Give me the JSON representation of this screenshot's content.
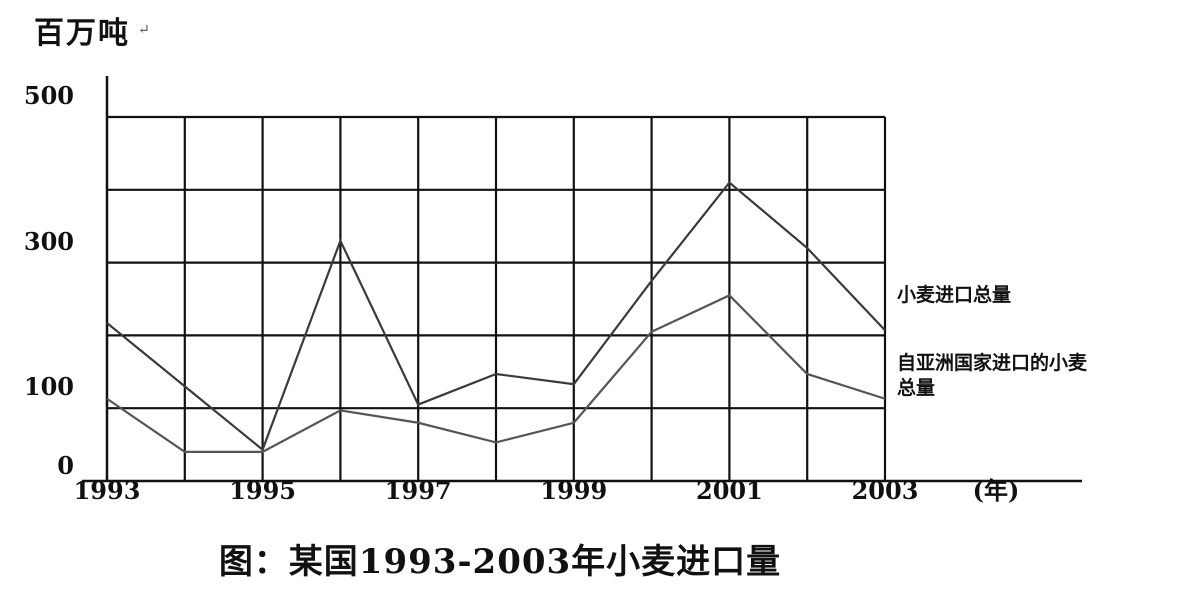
{
  "unit_label": "百万吨",
  "unit_mark": "↵",
  "caption": "图：某国1993-2003年小麦进口量",
  "chart_data": {
    "type": "line",
    "title": "图：某国1993-2003年小麦进口量",
    "ylabel": "百万吨",
    "xlabel": "(年)",
    "x": [
      1993,
      1994,
      1995,
      1996,
      1997,
      1998,
      1999,
      2000,
      2001,
      2002,
      2003
    ],
    "x_tick_labels": [
      "1993",
      "1995",
      "1997",
      "1999",
      "2001",
      "2003"
    ],
    "x_tick_values": [
      1993,
      1995,
      1997,
      1999,
      2001,
      2003
    ],
    "y_tick_labels": [
      "500",
      "300",
      "100",
      "0"
    ],
    "y_tick_values": [
      500,
      300,
      100,
      0
    ],
    "ylim": [
      0,
      500
    ],
    "grid": true,
    "series": [
      {
        "name": "小麦进口总量",
        "values": [
          217,
          130,
          43,
          330,
          105,
          147,
          133,
          275,
          410,
          320,
          207
        ]
      },
      {
        "name": "自亚洲国家进口的小麦总量",
        "values": [
          113,
          40,
          40,
          97,
          80,
          53,
          80,
          205,
          255,
          147,
          113
        ]
      }
    ],
    "legend_labels": [
      {
        "lines": [
          "小麦进口总量"
        ]
      },
      {
        "lines": [
          "自亚洲国家进口的小麦",
          "总量"
        ]
      }
    ]
  }
}
